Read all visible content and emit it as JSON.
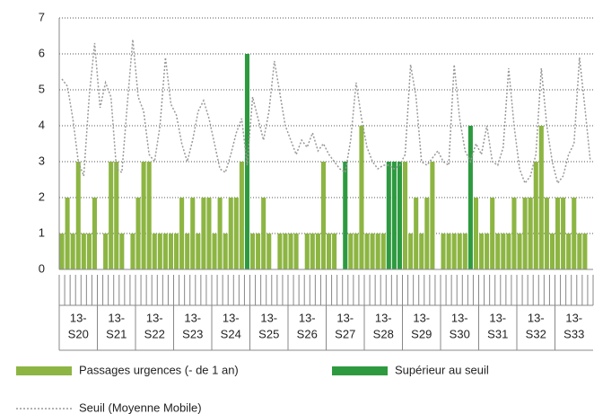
{
  "chart_data": {
    "type": "bar",
    "week_labels": [
      [
        "13-",
        "S20"
      ],
      [
        "13-",
        "S21"
      ],
      [
        "13-",
        "S22"
      ],
      [
        "13-",
        "S23"
      ],
      [
        "13-",
        "S24"
      ],
      [
        "13-",
        "S25"
      ],
      [
        "13-",
        "S26"
      ],
      [
        "13-",
        "S27"
      ],
      [
        "13-",
        "S28"
      ],
      [
        "13-",
        "S29"
      ],
      [
        "13-",
        "S30"
      ],
      [
        "13-",
        "S31"
      ],
      [
        "13-",
        "S32"
      ],
      [
        "13-",
        "S33"
      ]
    ],
    "ylim": [
      0,
      7
    ],
    "yticks": [
      0,
      1,
      2,
      3,
      4,
      5,
      6,
      7
    ],
    "grid": true,
    "series": [
      {
        "name": "Passages urgences (- de 1 an)",
        "color": "#8db543",
        "values": [
          1,
          2,
          1,
          3,
          1,
          1,
          2,
          0,
          1,
          3,
          3,
          1,
          0,
          1,
          2,
          3,
          3,
          1,
          1,
          1,
          1,
          1,
          2,
          1,
          2,
          1,
          2,
          2,
          1,
          2,
          1,
          2,
          2,
          3,
          null,
          1,
          1,
          2,
          1,
          0,
          1,
          1,
          1,
          1,
          0,
          1,
          1,
          1,
          3,
          1,
          1,
          0,
          null,
          1,
          1,
          4,
          1,
          1,
          1,
          1,
          null,
          null,
          null,
          3,
          1,
          2,
          1,
          2,
          3,
          0,
          1,
          1,
          1,
          1,
          1,
          null,
          2,
          1,
          1,
          2,
          1,
          1,
          1,
          2,
          1,
          2,
          2,
          3,
          4,
          2,
          1,
          2,
          2,
          1,
          2,
          1,
          1,
          0
        ]
      },
      {
        "name": "Supérieur au seuil",
        "color": "#2e9a40",
        "values": [
          null,
          null,
          null,
          null,
          null,
          null,
          null,
          null,
          null,
          null,
          null,
          null,
          null,
          null,
          null,
          null,
          null,
          null,
          null,
          null,
          null,
          null,
          null,
          null,
          null,
          null,
          null,
          null,
          null,
          null,
          null,
          null,
          null,
          null,
          6,
          null,
          null,
          null,
          null,
          null,
          null,
          null,
          null,
          null,
          null,
          null,
          null,
          null,
          null,
          null,
          null,
          null,
          3,
          null,
          null,
          null,
          null,
          null,
          null,
          null,
          3,
          3,
          3,
          null,
          null,
          null,
          null,
          null,
          null,
          null,
          null,
          null,
          null,
          null,
          null,
          4,
          null,
          null,
          null,
          null,
          null,
          null,
          null,
          null,
          null,
          null,
          null,
          null,
          null,
          null,
          null,
          null,
          null,
          null,
          null,
          null,
          null,
          null
        ]
      },
      {
        "name": "Seuil (Moyenne Mobile)",
        "type": "line",
        "color": "#999999",
        "values": [
          5.3,
          5.1,
          4.2,
          3.0,
          2.6,
          4.8,
          6.3,
          4.5,
          5.2,
          4.8,
          2.8,
          2.7,
          4.6,
          6.4,
          4.8,
          4.4,
          3.2,
          3.0,
          4.0,
          5.9,
          4.6,
          4.3,
          3.5,
          3.0,
          3.6,
          4.4,
          4.7,
          4.2,
          3.5,
          2.8,
          2.7,
          3.2,
          3.8,
          4.2,
          2.9,
          4.8,
          4.2,
          3.6,
          4.4,
          5.8,
          4.9,
          4.0,
          3.6,
          3.2,
          3.6,
          3.4,
          3.8,
          3.3,
          3.5,
          3.2,
          3.0,
          2.8,
          2.7,
          3.6,
          5.2,
          4.2,
          3.4,
          3.0,
          2.8,
          2.9,
          2.9,
          2.8,
          2.9,
          3.2,
          5.7,
          4.8,
          3.0,
          2.9,
          3.1,
          3.3,
          3.0,
          2.9,
          5.7,
          4.2,
          3.3,
          3.0,
          3.5,
          3.2,
          4.0,
          3.0,
          2.9,
          3.4,
          5.6,
          4.0,
          2.8,
          2.4,
          2.6,
          3.2,
          5.6,
          4.0,
          3.0,
          2.4,
          2.6,
          3.2,
          3.5,
          5.9,
          4.5,
          3.0
        ]
      }
    ]
  }
}
